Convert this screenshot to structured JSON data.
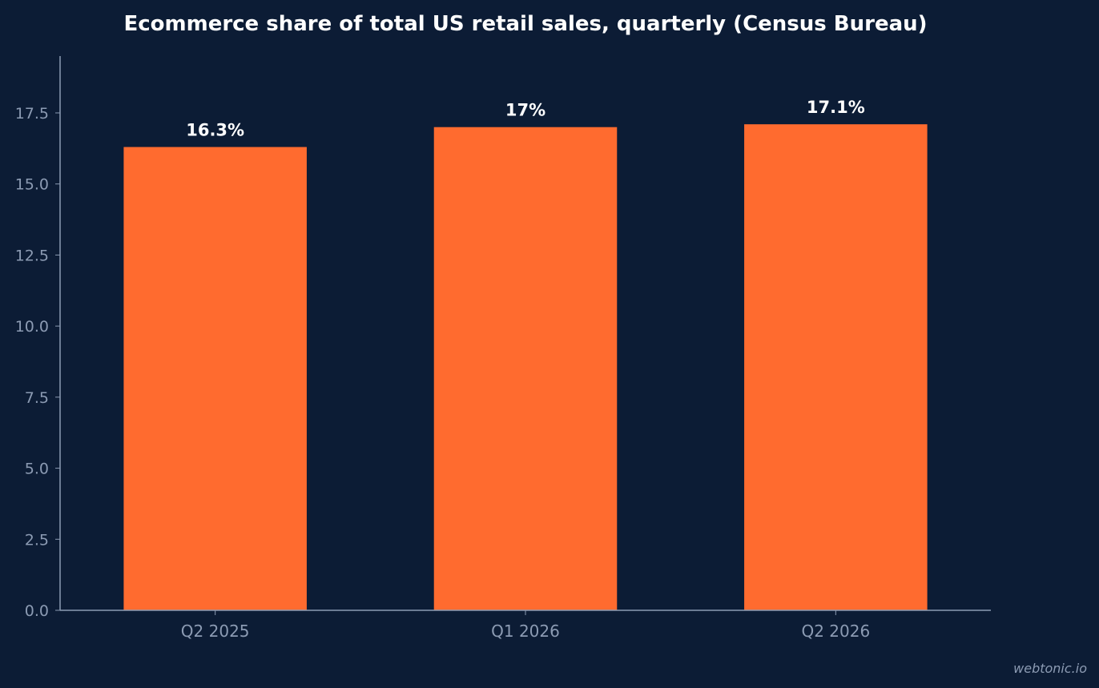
{
  "chart_data": {
    "type": "bar",
    "title": "Ecommerce share of total US retail sales, quarterly (Census Bureau)",
    "xlabel": "",
    "ylabel": "",
    "categories": [
      "Q2 2025",
      "Q1 2026",
      "Q2 2026"
    ],
    "values": [
      16.3,
      17.0,
      17.1
    ],
    "data_labels": [
      "16.3%",
      "17%",
      "17.1%"
    ],
    "y_ticks": [
      0.0,
      2.5,
      5.0,
      7.5,
      10.0,
      12.5,
      15.0,
      17.5
    ],
    "y_tick_labels": [
      "0.0",
      "2.5",
      "5.0",
      "7.5",
      "10.0",
      "12.5",
      "15.0",
      "17.5"
    ],
    "ylim": [
      0,
      19.5
    ],
    "grid": false,
    "legend": "none",
    "colors": {
      "background": "#0c1c35",
      "bar": "#ff6b2f",
      "axis": "#8c9bb3",
      "text": "#ffffff"
    }
  },
  "watermark": "webtonic.io"
}
